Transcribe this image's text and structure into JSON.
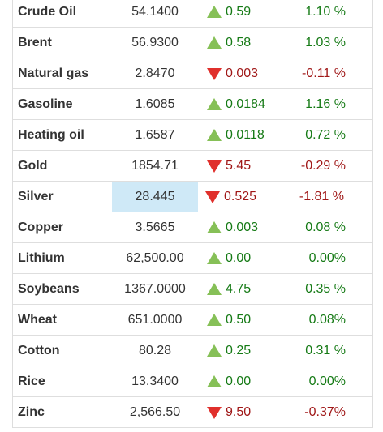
{
  "commodities": [
    {
      "name": "Crude Oil",
      "price": "54.1400",
      "change": "0.59",
      "pct": "1.10 %",
      "dir": "up"
    },
    {
      "name": "Brent",
      "price": "56.9300",
      "change": "0.58",
      "pct": "1.03 %",
      "dir": "up"
    },
    {
      "name": "Natural gas",
      "price": "2.8470",
      "change": "0.003",
      "pct": "-0.11 %",
      "dir": "down"
    },
    {
      "name": "Gasoline",
      "price": "1.6085",
      "change": "0.0184",
      "pct": "1.16 %",
      "dir": "up"
    },
    {
      "name": "Heating oil",
      "price": "1.6587",
      "change": "0.0118",
      "pct": "0.72 %",
      "dir": "up"
    },
    {
      "name": "Gold",
      "price": "1854.71",
      "change": "5.45",
      "pct": "-0.29 %",
      "dir": "down"
    },
    {
      "name": "Silver",
      "price": "28.445",
      "change": "0.525",
      "pct": "-1.81 %",
      "dir": "down",
      "highlight": true
    },
    {
      "name": "Copper",
      "price": "3.5665",
      "change": "0.003",
      "pct": "0.08 %",
      "dir": "up"
    },
    {
      "name": "Lithium",
      "price": "62,500.00",
      "change": "0.00",
      "pct": "0.00%",
      "dir": "up"
    },
    {
      "name": "Soybeans",
      "price": "1367.0000",
      "change": "4.75",
      "pct": "0.35 %",
      "dir": "up"
    },
    {
      "name": "Wheat",
      "price": "651.0000",
      "change": "0.50",
      "pct": "0.08%",
      "dir": "up"
    },
    {
      "name": "Cotton",
      "price": "80.28",
      "change": "0.25",
      "pct": "0.31 %",
      "dir": "up"
    },
    {
      "name": "Rice",
      "price": "13.3400",
      "change": "0.00",
      "pct": "0.00%",
      "dir": "up"
    },
    {
      "name": "Zinc",
      "price": "2,566.50",
      "change": "9.50",
      "pct": "-0.37%",
      "dir": "down"
    }
  ],
  "colors": {
    "up_arrow": "#86c057",
    "down_arrow": "#e0302c",
    "up_text": "#157a15",
    "down_text": "#a01818",
    "highlight_bg": "#cfe9f7"
  },
  "icons": {
    "up": "triangle-up-icon",
    "down": "triangle-down-icon"
  }
}
